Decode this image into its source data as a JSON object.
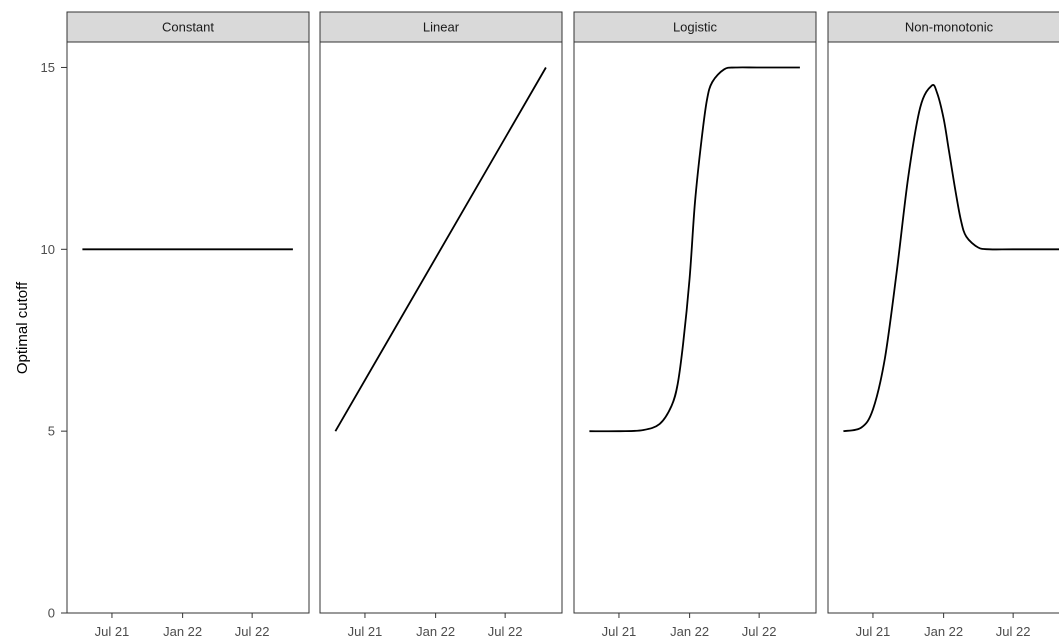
{
  "chart_data": {
    "type": "line",
    "ylabel": "Optimal cutoff",
    "xlabel": "",
    "ylim": [
      0,
      15.7
    ],
    "y_ticks": [
      0,
      5,
      10,
      15
    ],
    "x_range": [
      "2021-04-01",
      "2022-10-31"
    ],
    "x_ticks": [
      {
        "date": "2021-07-01",
        "label": "Jul 21"
      },
      {
        "date": "2022-01-01",
        "label": "Jan 22"
      },
      {
        "date": "2022-07-01",
        "label": "Jul 22"
      }
    ],
    "grid": false,
    "panels": [
      {
        "title": "Constant",
        "x": [
          "2021-04-15",
          "2021-07-01",
          "2022-01-01",
          "2022-07-01",
          "2022-10-15"
        ],
        "y": [
          10,
          10,
          10,
          10,
          10
        ]
      },
      {
        "title": "Linear",
        "x": [
          "2021-04-15",
          "2022-10-15"
        ],
        "y": [
          5,
          15
        ]
      },
      {
        "title": "Logistic",
        "x": [
          "2021-04-15",
          "2021-07-01",
          "2021-09-01",
          "2021-10-15",
          "2021-11-15",
          "2021-12-01",
          "2021-12-15",
          "2022-01-01",
          "2022-01-15",
          "2022-02-01",
          "2022-02-15",
          "2022-03-01",
          "2022-04-01",
          "2022-05-01",
          "2022-07-01",
          "2022-10-15"
        ],
        "y": [
          5.0,
          5.0,
          5.03,
          5.2,
          5.7,
          6.3,
          7.4,
          9.2,
          11.3,
          13.0,
          14.1,
          14.6,
          14.95,
          15.0,
          15.0,
          15.0
        ]
      },
      {
        "title": "Non-monotonic",
        "x": [
          "2021-04-15",
          "2021-06-01",
          "2021-07-01",
          "2021-08-01",
          "2021-09-01",
          "2021-10-01",
          "2021-11-01",
          "2021-12-01",
          "2021-12-15",
          "2022-01-01",
          "2022-01-15",
          "2022-02-01",
          "2022-02-15",
          "2022-03-01",
          "2022-04-01",
          "2022-05-01",
          "2022-07-01",
          "2022-10-31"
        ],
        "y": [
          5.0,
          5.1,
          5.6,
          7.0,
          9.4,
          12.0,
          13.9,
          14.5,
          14.3,
          13.6,
          12.7,
          11.6,
          10.8,
          10.35,
          10.05,
          10.0,
          10.0,
          10.0
        ]
      }
    ]
  },
  "colors": {
    "strip_bg": "#d9d9d9",
    "line": "#000000",
    "panel_border": "#333333"
  }
}
